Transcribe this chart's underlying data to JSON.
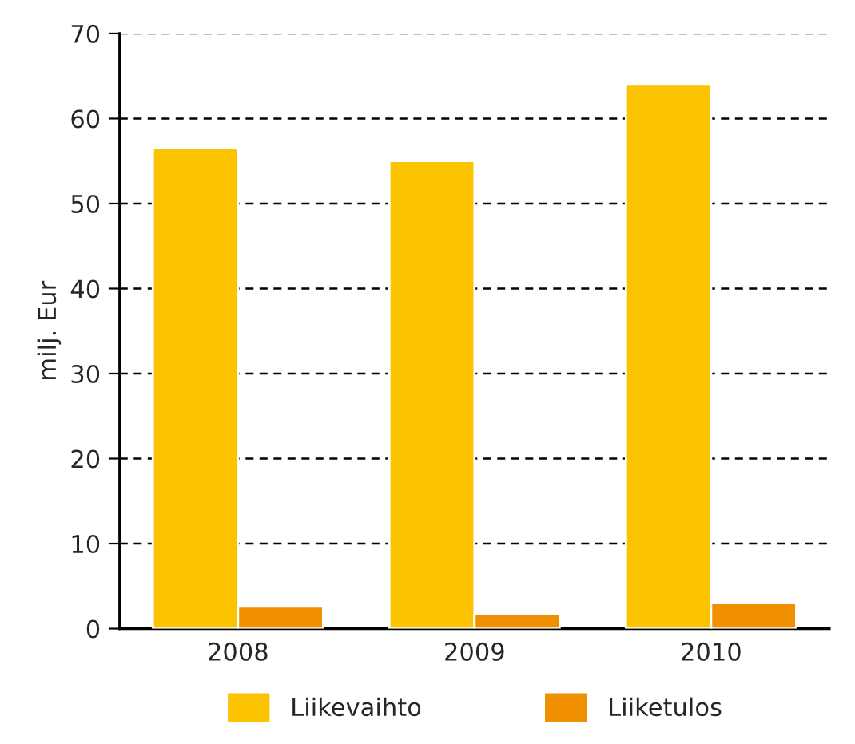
{
  "chart_data": {
    "type": "bar",
    "ylabel": "milj. Eur",
    "categories": [
      "2008",
      "2009",
      "2010"
    ],
    "series": [
      {
        "name": "Liikevaihto",
        "color": "#fcc400",
        "values": [
          56.5,
          55.0,
          64.0
        ]
      },
      {
        "name": "Liiketulos",
        "color": "#f09000",
        "values": [
          2.6,
          1.7,
          3.0
        ]
      }
    ],
    "ylim": [
      0,
      70
    ],
    "yticks": [
      0,
      10,
      20,
      30,
      40,
      50,
      60,
      70
    ],
    "grid": "y",
    "legend": "bottom"
  }
}
